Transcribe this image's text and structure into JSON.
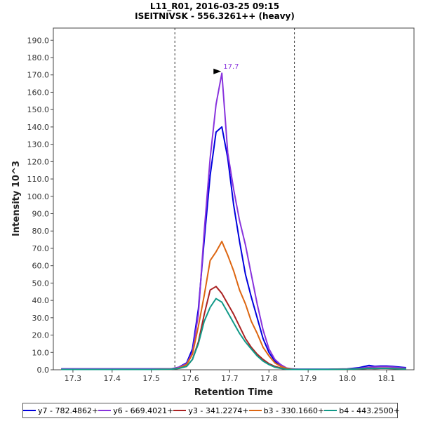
{
  "chart_data": {
    "type": "line",
    "title": "L11_R01, 2016-03-25 09:15",
    "subtitle": "ISEITNIVSK - 556.3261++ (heavy)",
    "xlabel": "Retention Time",
    "ylabel": "Intensity 10^3",
    "xlim": [
      17.25,
      18.17
    ],
    "ylim": [
      0,
      197
    ],
    "x_ticks": [
      "17.3",
      "17.4",
      "17.5",
      "17.6",
      "17.7",
      "17.8",
      "17.9",
      "18.0",
      "18.1"
    ],
    "x_tick_values": [
      17.3,
      17.4,
      17.5,
      17.6,
      17.7,
      17.8,
      17.9,
      18.0,
      18.1
    ],
    "y_ticks": [
      "0.0",
      "10.0",
      "20.0",
      "30.0",
      "40.0",
      "50.0",
      "60.0",
      "70.0",
      "80.0",
      "90.0",
      "100.0",
      "110.0",
      "120.0",
      "130.0",
      "140.0",
      "150.0",
      "160.0",
      "170.0",
      "180.0",
      "190.0"
    ],
    "y_tick_values": [
      0,
      10,
      20,
      30,
      40,
      50,
      60,
      70,
      80,
      90,
      100,
      110,
      120,
      130,
      140,
      150,
      160,
      170,
      180,
      190
    ],
    "integration_bounds": [
      17.56,
      17.865
    ],
    "peak_annotation": {
      "label": "17.7",
      "x": 17.68,
      "y": 172
    },
    "x": [
      17.27,
      17.3,
      17.4,
      17.5,
      17.55,
      17.57,
      17.59,
      17.605,
      17.62,
      17.635,
      17.65,
      17.665,
      17.68,
      17.695,
      17.71,
      17.725,
      17.74,
      17.755,
      17.77,
      17.785,
      17.8,
      17.815,
      17.83,
      17.845,
      17.86,
      17.875,
      17.9,
      17.95,
      18.0,
      18.03,
      18.055,
      18.07,
      18.085,
      18.1,
      18.115,
      18.13,
      18.15
    ],
    "series": [
      {
        "name": "y7 - 782.4862+",
        "color": "#0000dd",
        "values": [
          0.5,
          0.5,
          0.5,
          0.5,
          0.5,
          1.5,
          4,
          12,
          35,
          75,
          112,
          137,
          140,
          122,
          95,
          74,
          55,
          42,
          30,
          18,
          10,
          5,
          2,
          0.8,
          0.5,
          0.3,
          0.3,
          0.3,
          0.5,
          1.2,
          2.5,
          2,
          2.2,
          2.2,
          2,
          1.6,
          1.2
        ]
      },
      {
        "name": "y6 - 669.4021+",
        "color": "#8833dd",
        "values": [
          0.5,
          0.5,
          0.5,
          0.5,
          0.5,
          1.5,
          3.5,
          10,
          32,
          80,
          122,
          153,
          171,
          125,
          104,
          86,
          72,
          55,
          38,
          23,
          12,
          6,
          3,
          1,
          0.5,
          0.3,
          0.3,
          0.3,
          0.4,
          0.8,
          1.5,
          1.6,
          1.8,
          1.8,
          1.6,
          1.2,
          0.9
        ]
      },
      {
        "name": "y3 - 341.2274+",
        "color": "#aa2222",
        "values": [
          0.2,
          0.2,
          0.2,
          0.2,
          0.3,
          0.8,
          2,
          6,
          16,
          32,
          46,
          48,
          44,
          38,
          32,
          25,
          18,
          13,
          9,
          6,
          3.5,
          2,
          1,
          0.4,
          0.2,
          0.2,
          0.2,
          0.2,
          0.3,
          0.5,
          0.8,
          0.7,
          0.8,
          0.8,
          0.7,
          0.5,
          0.4
        ]
      },
      {
        "name": "b3 - 330.1660+",
        "color": "#dd6611",
        "values": [
          0.2,
          0.2,
          0.2,
          0.2,
          0.3,
          1,
          3,
          9,
          25,
          43,
          63,
          68,
          74,
          66,
          57,
          46,
          38,
          28,
          21,
          13,
          8,
          4,
          2,
          0.8,
          0.3,
          0.2,
          0.2,
          0.2,
          0.3,
          0.5,
          0.9,
          0.8,
          0.9,
          0.9,
          0.8,
          0.6,
          0.4
        ]
      },
      {
        "name": "b4 - 443.2500+",
        "color": "#119988",
        "values": [
          0.2,
          0.2,
          0.2,
          0.2,
          0.3,
          0.8,
          2,
          6,
          15,
          28,
          36,
          41,
          39,
          33,
          27,
          21,
          16,
          12,
          8,
          5,
          3,
          1.5,
          0.8,
          0.3,
          0.2,
          0.2,
          0.2,
          0.2,
          0.3,
          0.5,
          0.8,
          0.7,
          0.8,
          0.8,
          0.7,
          0.5,
          0.4
        ]
      }
    ]
  }
}
